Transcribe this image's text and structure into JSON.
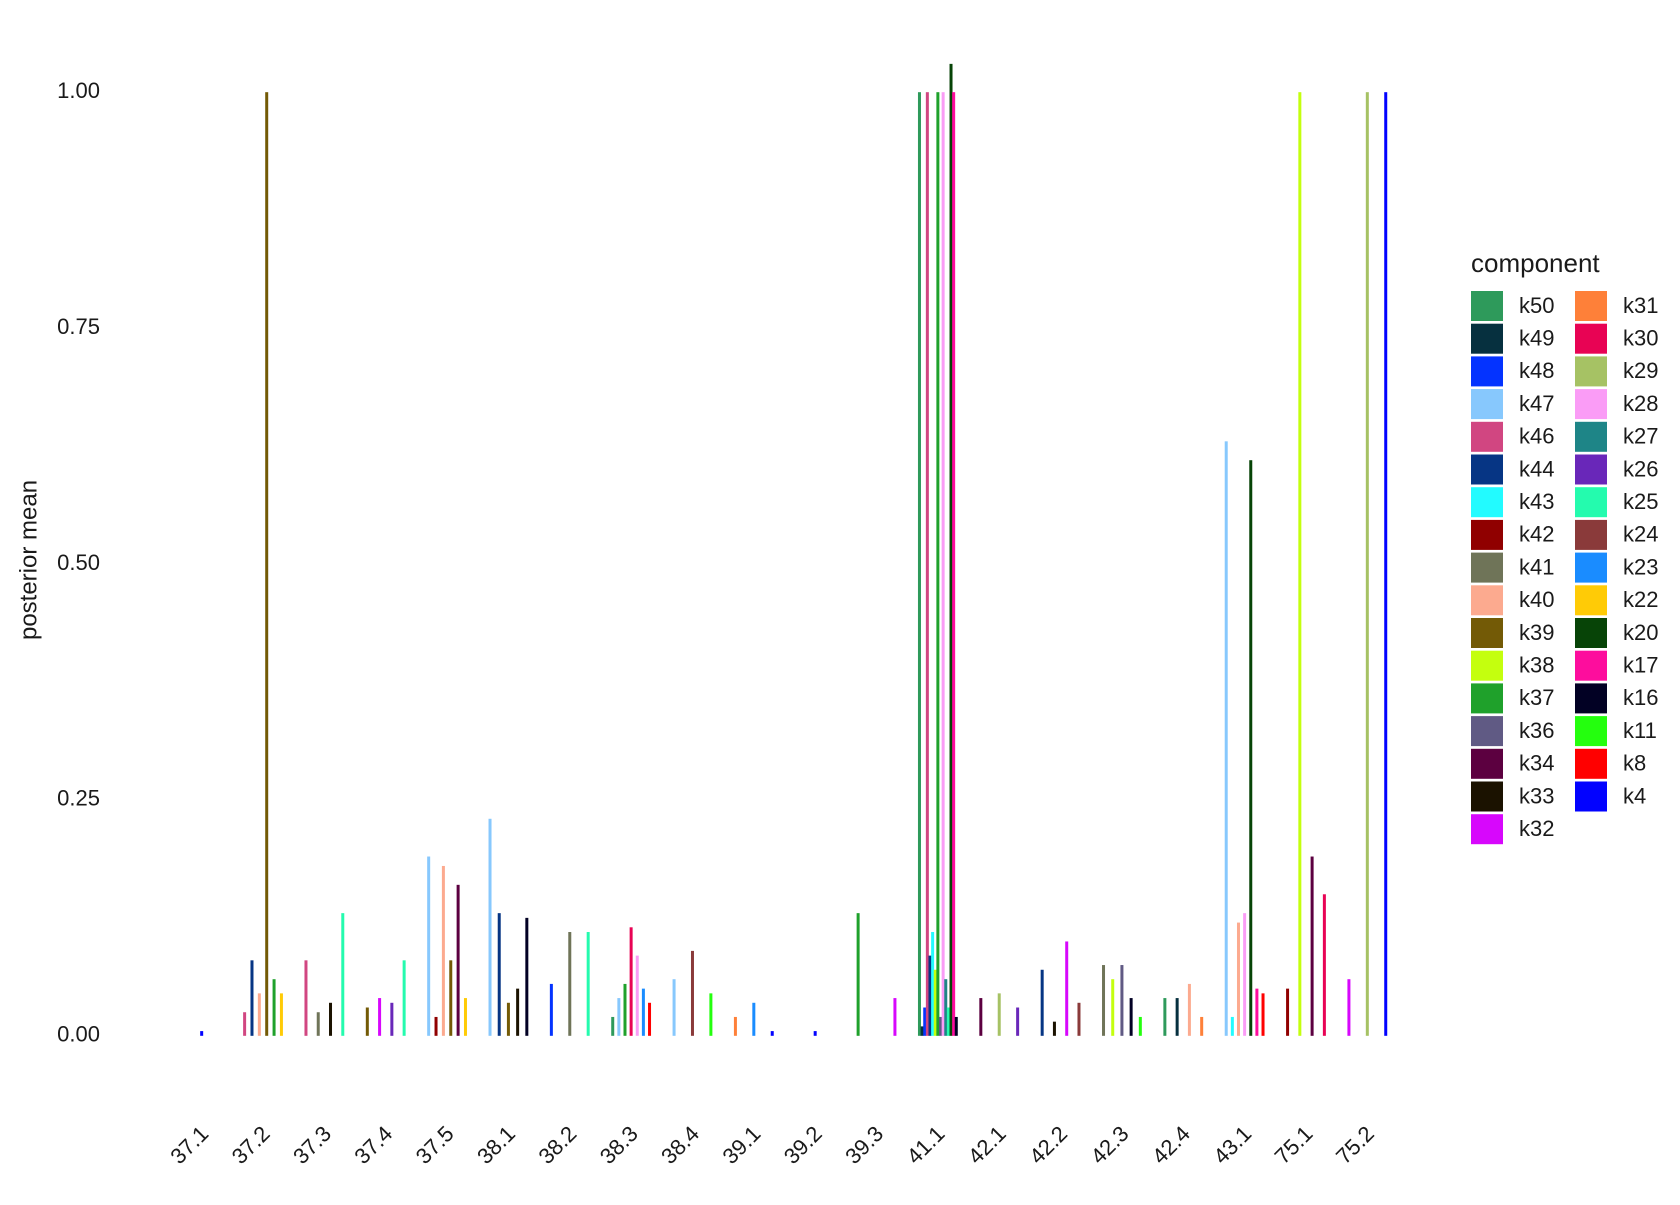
{
  "chart_data": {
    "type": "bar",
    "y_label": "posterior mean",
    "legend_title": "component",
    "legend_position": "right",
    "grid": false,
    "categories": [
      "37.1",
      "37.2",
      "37.3",
      "37.4",
      "37.5",
      "38.1",
      "38.2",
      "38.3",
      "38.4",
      "39.1",
      "39.2",
      "39.3",
      "41.1",
      "42.1",
      "42.2",
      "42.3",
      "42.4",
      "43.1",
      "75.1",
      "75.2"
    ],
    "ylim": [
      -0.05,
      1.05
    ],
    "yticks": [
      {
        "value": 0,
        "label": "0.00"
      },
      {
        "value": 0.25,
        "label": "0.25"
      },
      {
        "value": 0.5,
        "label": "0.50"
      },
      {
        "value": 0.75,
        "label": "0.75"
      },
      {
        "value": 1,
        "label": "1.00"
      }
    ],
    "series": [
      {
        "name": "k50",
        "color": "#2e9a5b",
        "values": [
          null,
          null,
          null,
          null,
          null,
          null,
          null,
          0.02,
          null,
          null,
          null,
          null,
          1.0,
          null,
          null,
          null,
          0.04,
          null,
          null,
          null
        ]
      },
      {
        "name": "k49",
        "color": "#06303f",
        "values": [
          null,
          null,
          null,
          null,
          null,
          null,
          null,
          null,
          null,
          null,
          null,
          null,
          0.01,
          null,
          null,
          null,
          0.04,
          null,
          null,
          null
        ]
      },
      {
        "name": "k48",
        "color": "#0433ff",
        "values": [
          null,
          null,
          null,
          null,
          null,
          null,
          0.055,
          null,
          null,
          null,
          null,
          null,
          0.03,
          null,
          null,
          null,
          null,
          null,
          null,
          null
        ]
      },
      {
        "name": "k47",
        "color": "#87c8fd",
        "values": [
          null,
          null,
          null,
          null,
          0.19,
          0.23,
          null,
          0.04,
          0.06,
          null,
          null,
          null,
          null,
          null,
          null,
          null,
          null,
          0.63,
          null,
          null
        ]
      },
      {
        "name": "k46",
        "color": "#d14681",
        "values": [
          null,
          0.025,
          0.08,
          null,
          null,
          null,
          null,
          null,
          null,
          null,
          null,
          null,
          1.0,
          null,
          null,
          null,
          null,
          null,
          null,
          null
        ]
      },
      {
        "name": "k44",
        "color": "#063584",
        "values": [
          null,
          0.08,
          null,
          null,
          null,
          0.13,
          null,
          null,
          null,
          null,
          null,
          null,
          0.085,
          null,
          0.07,
          null,
          null,
          null,
          null,
          null
        ]
      },
      {
        "name": "k43",
        "color": "#22fbff",
        "values": [
          null,
          null,
          null,
          null,
          null,
          null,
          null,
          null,
          null,
          null,
          null,
          null,
          0.11,
          null,
          null,
          null,
          null,
          0.02,
          null,
          null
        ]
      },
      {
        "name": "k42",
        "color": "#900000",
        "values": [
          null,
          null,
          null,
          null,
          0.02,
          null,
          null,
          null,
          null,
          null,
          null,
          null,
          null,
          null,
          null,
          null,
          null,
          null,
          0.05,
          null
        ]
      },
      {
        "name": "k41",
        "color": "#6f7458",
        "values": [
          null,
          null,
          0.025,
          null,
          null,
          null,
          0.11,
          null,
          null,
          null,
          null,
          null,
          null,
          null,
          null,
          0.075,
          null,
          null,
          null,
          null
        ]
      },
      {
        "name": "k40",
        "color": "#fcaa8f",
        "values": [
          null,
          0.045,
          null,
          null,
          0.18,
          null,
          null,
          null,
          null,
          null,
          null,
          null,
          null,
          null,
          null,
          null,
          0.055,
          0.12,
          null,
          null
        ]
      },
      {
        "name": "k39",
        "color": "#735a06",
        "values": [
          null,
          1.0,
          null,
          0.03,
          0.08,
          0.035,
          null,
          null,
          null,
          null,
          null,
          null,
          null,
          null,
          null,
          null,
          null,
          null,
          null,
          null
        ]
      },
      {
        "name": "k38",
        "color": "#c4ff0e",
        "values": [
          null,
          null,
          null,
          null,
          null,
          null,
          null,
          null,
          null,
          null,
          null,
          null,
          0.07,
          null,
          null,
          0.06,
          null,
          null,
          1.0,
          null
        ]
      },
      {
        "name": "k37",
        "color": "#1fa12b",
        "values": [
          null,
          0.06,
          null,
          null,
          null,
          null,
          null,
          0.055,
          null,
          null,
          null,
          0.13,
          1.0,
          null,
          null,
          null,
          null,
          null,
          null,
          null
        ]
      },
      {
        "name": "k36",
        "color": "#605a84",
        "values": [
          null,
          null,
          null,
          null,
          null,
          null,
          null,
          null,
          null,
          null,
          null,
          null,
          0.02,
          null,
          null,
          0.075,
          null,
          null,
          null,
          null
        ]
      },
      {
        "name": "k34",
        "color": "#5c0040",
        "values": [
          null,
          null,
          null,
          null,
          0.16,
          null,
          null,
          null,
          null,
          null,
          null,
          null,
          null,
          0.04,
          null,
          null,
          null,
          null,
          0.19,
          null
        ]
      },
      {
        "name": "k33",
        "color": "#1b1200",
        "values": [
          null,
          null,
          0.035,
          null,
          null,
          0.05,
          null,
          null,
          null,
          null,
          null,
          null,
          null,
          null,
          0.015,
          null,
          null,
          null,
          null,
          null
        ]
      },
      {
        "name": "k32",
        "color": "#d707fc",
        "values": [
          null,
          null,
          null,
          0.04,
          null,
          null,
          null,
          null,
          null,
          null,
          null,
          0.04,
          null,
          null,
          0.1,
          null,
          null,
          null,
          null,
          0.06
        ]
      },
      {
        "name": "k31",
        "color": "#fe8039",
        "values": [
          null,
          null,
          null,
          null,
          null,
          null,
          null,
          null,
          null,
          0.02,
          null,
          null,
          null,
          null,
          null,
          null,
          0.02,
          null,
          null,
          null
        ]
      },
      {
        "name": "k30",
        "color": "#e80354",
        "values": [
          null,
          null,
          null,
          null,
          null,
          null,
          null,
          0.115,
          null,
          null,
          null,
          null,
          null,
          null,
          null,
          null,
          null,
          null,
          0.15,
          null
        ]
      },
      {
        "name": "k29",
        "color": "#a6c264",
        "values": [
          null,
          null,
          null,
          null,
          null,
          null,
          null,
          null,
          null,
          null,
          null,
          null,
          null,
          0.045,
          null,
          null,
          null,
          null,
          null,
          1.0
        ]
      },
      {
        "name": "k28",
        "color": "#fa9cf6",
        "values": [
          null,
          null,
          null,
          null,
          null,
          null,
          null,
          0.085,
          null,
          null,
          null,
          null,
          1.0,
          null,
          null,
          null,
          null,
          0.13,
          null,
          null
        ]
      },
      {
        "name": "k27",
        "color": "#1e8587",
        "values": [
          null,
          null,
          null,
          null,
          null,
          null,
          null,
          null,
          null,
          null,
          null,
          null,
          0.06,
          null,
          null,
          null,
          null,
          null,
          null,
          null
        ]
      },
      {
        "name": "k26",
        "color": "#6927b9",
        "values": [
          null,
          null,
          null,
          0.035,
          null,
          null,
          null,
          null,
          null,
          null,
          null,
          null,
          null,
          0.03,
          null,
          null,
          null,
          null,
          null,
          null
        ]
      },
      {
        "name": "k25",
        "color": "#24fbae",
        "values": [
          null,
          null,
          0.13,
          0.08,
          null,
          null,
          0.11,
          null,
          null,
          null,
          null,
          null,
          0.03,
          null,
          null,
          null,
          null,
          null,
          null,
          null
        ]
      },
      {
        "name": "k24",
        "color": "#8a3a3a",
        "values": [
          null,
          null,
          null,
          null,
          null,
          null,
          null,
          null,
          0.09,
          null,
          null,
          null,
          null,
          null,
          0.035,
          null,
          null,
          null,
          null,
          null
        ]
      },
      {
        "name": "k23",
        "color": "#1a8cff",
        "values": [
          null,
          null,
          null,
          null,
          null,
          null,
          null,
          0.05,
          null,
          0.035,
          null,
          null,
          null,
          null,
          null,
          null,
          null,
          null,
          null,
          null
        ]
      },
      {
        "name": "k22",
        "color": "#ffcb06",
        "values": [
          null,
          0.045,
          null,
          null,
          0.04,
          null,
          null,
          null,
          null,
          null,
          null,
          null,
          null,
          null,
          null,
          null,
          null,
          null,
          null,
          null
        ]
      },
      {
        "name": "k20",
        "color": "#074407",
        "values": [
          null,
          null,
          null,
          null,
          null,
          null,
          null,
          null,
          null,
          null,
          null,
          null,
          1.03,
          null,
          null,
          null,
          null,
          0.61,
          null,
          null
        ]
      },
      {
        "name": "k17",
        "color": "#fd0d9d",
        "values": [
          null,
          null,
          null,
          null,
          null,
          null,
          null,
          null,
          null,
          null,
          null,
          null,
          1.0,
          null,
          null,
          null,
          null,
          0.05,
          null,
          null
        ]
      },
      {
        "name": "k16",
        "color": "#020124",
        "values": [
          null,
          null,
          null,
          null,
          null,
          0.125,
          null,
          null,
          null,
          null,
          null,
          null,
          0.02,
          null,
          null,
          0.04,
          null,
          null,
          null,
          null
        ]
      },
      {
        "name": "k11",
        "color": "#24ff0e",
        "values": [
          null,
          null,
          null,
          null,
          null,
          null,
          null,
          null,
          0.045,
          null,
          null,
          null,
          null,
          null,
          null,
          0.02,
          null,
          null,
          null,
          null
        ]
      },
      {
        "name": "k8",
        "color": "#ff0000",
        "values": [
          null,
          null,
          null,
          null,
          null,
          null,
          null,
          0.035,
          null,
          null,
          null,
          null,
          null,
          null,
          null,
          null,
          null,
          0.045,
          null,
          null
        ]
      },
      {
        "name": "k4",
        "color": "#0202ff",
        "values": [
          0.005,
          null,
          null,
          null,
          null,
          null,
          null,
          null,
          null,
          0.005,
          0.005,
          null,
          null,
          null,
          null,
          null,
          null,
          null,
          null,
          1.0
        ]
      }
    ]
  }
}
